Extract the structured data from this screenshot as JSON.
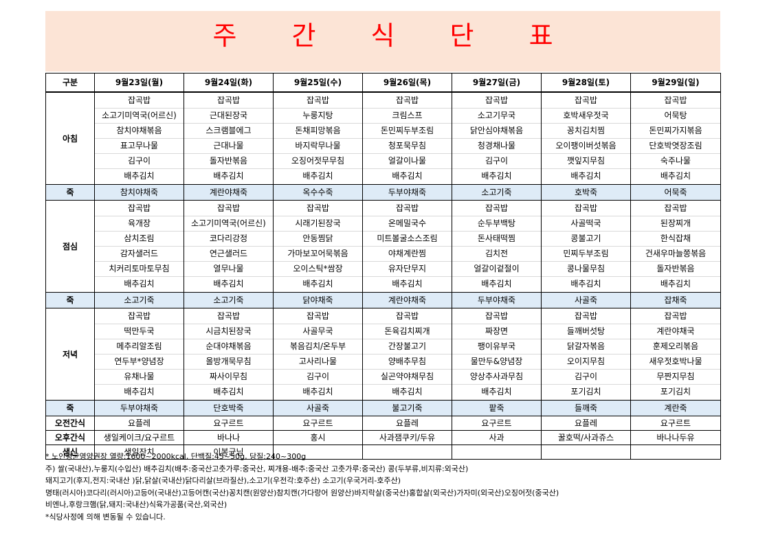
{
  "title": "주 간 식 단 표",
  "header": {
    "category": "구분",
    "days": [
      "9월23일(월)",
      "9월24일(화)",
      "9월25일(수)",
      "9월26일(목)",
      "9월27일(금)",
      "9월28일(토)",
      "9월29일(일)"
    ]
  },
  "breakfast": {
    "label": "아침",
    "days": [
      [
        "잡곡밥",
        "소고기미역국(어르신)",
        "참치야채볶음",
        "표고무나물",
        "김구이",
        "배추김치"
      ],
      [
        "잡곡밥",
        "근대된장국",
        "스크램블에그",
        "근대나물",
        "돌자반볶음",
        "배추김치"
      ],
      [
        "잡곡밥",
        "누룽지탕",
        "돈채피망볶음",
        "바지락무나물",
        "오징어젓무무침",
        "배추김치"
      ],
      [
        "잡곡밥",
        "크림스프",
        "돈민찌두부조림",
        "청포묵무침",
        "얼갈이나물",
        "배추김치"
      ],
      [
        "잡곡밥",
        "소고기무국",
        "닭안심야채볶음",
        "청경채나물",
        "김구이",
        "배추김치"
      ],
      [
        "잡곡밥",
        "호박새우젓국",
        "꽁치김치찜",
        "오이팽이버섯볶음",
        "깻잎지무침",
        "배추김치"
      ],
      [
        "잡곡밥",
        "어묵탕",
        "돈민찌가지볶음",
        "단호박엿장조림",
        "숙주나물",
        "배추김치"
      ]
    ]
  },
  "porridge1": {
    "label": "죽",
    "items": [
      "참치야채죽",
      "계란야채죽",
      "옥수수죽",
      "두부야채죽",
      "소고기죽",
      "호박죽",
      "어묵죽"
    ]
  },
  "lunch": {
    "label": "점심",
    "days": [
      [
        "잡곡밥",
        "육개장",
        "삼치조림",
        "감자샐러드",
        "치커리토마토무침",
        "배추김치"
      ],
      [
        "잡곡밥",
        "소고기미역국(어르신)",
        "코다리강정",
        "연근샐러드",
        "열무나물",
        "배추김치"
      ],
      [
        "잡곡밥",
        "시래기된장국",
        "안동찜닭",
        "가마보꼬어묵볶음",
        "오이스틱*쌈장",
        "배추김치"
      ],
      [
        "잡곡밥",
        "온메밀국수",
        "미트볼굴소스조림",
        "야채계란찜",
        "유자단무지",
        "배추김치"
      ],
      [
        "잡곡밥",
        "순두부백탕",
        "돈사태떡찜",
        "김치전",
        "얼갈이겉절이",
        "배추김치"
      ],
      [
        "잡곡밥",
        "사골떡국",
        "콩불고기",
        "민찌두부조림",
        "콩나물무침",
        "배추김치"
      ],
      [
        "잡곡밥",
        "된장찌개",
        "한식잡채",
        "건새우마늘쫑볶음",
        "돌자반볶음",
        "배추김치"
      ]
    ]
  },
  "porridge2": {
    "label": "죽",
    "items": [
      "소고기죽",
      "소고기죽",
      "닭야채죽",
      "계란야채죽",
      "두부야채죽",
      "사골죽",
      "잡채죽"
    ]
  },
  "dinner": {
    "label": "저녁",
    "days": [
      [
        "잡곡밥",
        "떡만두국",
        "메추리알조림",
        "연두부*양념장",
        "유채나물",
        "배추김치"
      ],
      [
        "잡곡밥",
        "시금치된장국",
        "순대야채볶음",
        "올방개묵무침",
        "짜사이무침",
        "배추김치"
      ],
      [
        "잡곡밥",
        "사골무국",
        "볶음김치/온두부",
        "고사리나물",
        "김구이",
        "배추김치"
      ],
      [
        "잡곡밥",
        "돈육김치찌개",
        "간장불고기",
        "양배추무침",
        "실곤약야채무침",
        "배추김치"
      ],
      [
        "잡곡밥",
        "짜장면",
        "팽이유부국",
        "물만두&양념장",
        "양상추사과무침",
        "배추김치"
      ],
      [
        "잡곡밥",
        "들깨버섯탕",
        "닭갈자볶음",
        "오이지무침",
        "김구이",
        "포기김치"
      ],
      [
        "잡곡밥",
        "계란야채국",
        "훈제오리볶음",
        "새우젓호박나물",
        "무짠지무침",
        "포기김치"
      ]
    ]
  },
  "porridge3": {
    "label": "죽",
    "items": [
      "두부야채죽",
      "단호박죽",
      "사골죽",
      "불고기죽",
      "팥죽",
      "들깨죽",
      "계란죽"
    ]
  },
  "am_snack": {
    "label": "오전간식",
    "items": [
      "요플레",
      "요구르트",
      "요구르트",
      "요플레",
      "요구르트",
      "요플레",
      "요구르트"
    ]
  },
  "pm_snack": {
    "label": "오후간식",
    "items": [
      "생일케이크/요구르트",
      "바나나",
      "홍시",
      "사과잼쿠키/두유",
      "사과",
      "꿀호떡/사과쥬스",
      "바나나두유"
    ]
  },
  "birthday": {
    "label": "생신",
    "items": [
      "생일잔치",
      "이봉균님",
      "",
      "",
      "",
      "",
      ""
    ]
  },
  "notes": [
    "* 노인평균영양권장  열량:1600~2000kcal,  단백질:45~50g,  당질:240~300g",
    "주) 쌀(국내산),누룽지(수입산) 배추김치(배추:중국산고춧가루:중국산,  찌개용-배추:중국산 고춧가루:중국산) 콩(두부류,비지류:외국산)",
    "돼지고기(후지,전지:국내산 )닭,닭살(국내산)닭다리살(브라질산),소고기(우전각:호주산) 소고기(우국거리-호주산)",
    "명태(러시아)코다리(러시아)고등어(국내산)고등어캔(국산)꽁치캔(원양산)참치캔(가다랑어 원양산)바지락살(중국산)홍합살(외국산)가자미(외국산)오징어젓(중국산)",
    "비엔나,후랑크햄(닭,돼지:국내산)식육가공품(국산,외국산)",
    "*식당사정에 의해 변동될 수 있습니다."
  ]
}
